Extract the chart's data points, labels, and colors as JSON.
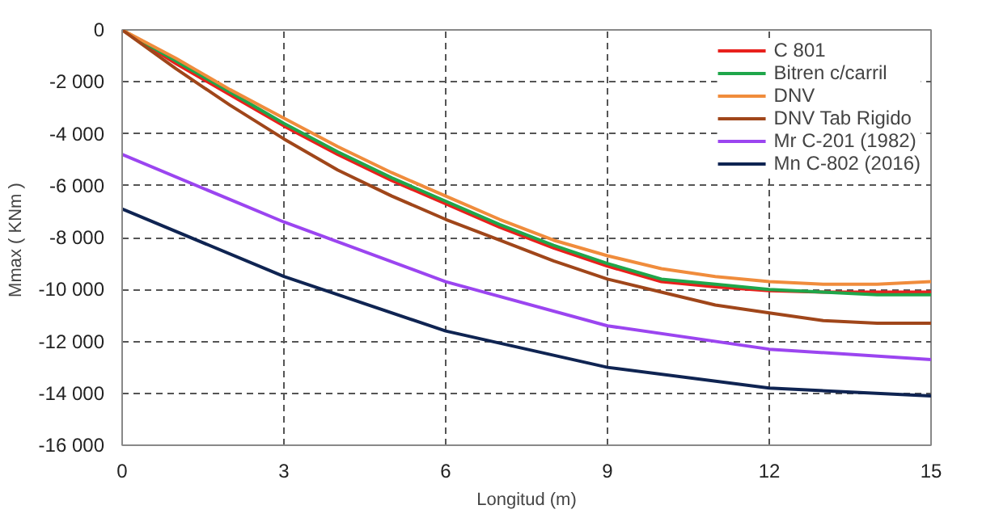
{
  "chart_data": {
    "type": "line",
    "xlabel": "Longitud (m)",
    "ylabel": "Mmax  ( KNm )",
    "x": [
      0,
      1,
      2,
      3,
      4,
      5,
      6,
      7,
      8,
      9,
      10,
      11,
      12,
      13,
      14,
      15
    ],
    "series": [
      {
        "name": "C 801",
        "color": "#e8201c",
        "values": [
          0,
          -1300,
          -2500,
          -3700,
          -4800,
          -5800,
          -6700,
          -7600,
          -8400,
          -9100,
          -9700,
          -9900,
          -10050,
          -10100,
          -10100,
          -10100
        ]
      },
      {
        "name": "Bitren c/carril",
        "color": "#1fa64a",
        "values": [
          0,
          -1200,
          -2400,
          -3600,
          -4700,
          -5700,
          -6600,
          -7500,
          -8300,
          -9000,
          -9600,
          -9800,
          -10000,
          -10100,
          -10200,
          -10200
        ]
      },
      {
        "name": "DNV",
        "color": "#f08c3c",
        "values": [
          0,
          -1100,
          -2300,
          -3400,
          -4500,
          -5500,
          -6400,
          -7300,
          -8100,
          -8700,
          -9200,
          -9500,
          -9700,
          -9800,
          -9800,
          -9700
        ]
      },
      {
        "name": "DNV Tab Rigido",
        "color": "#a0461a",
        "values": [
          0,
          -1500,
          -2900,
          -4200,
          -5400,
          -6400,
          -7300,
          -8100,
          -8900,
          -9600,
          -10100,
          -10600,
          -10900,
          -11200,
          -11300,
          -11300
        ]
      },
      {
        "name": "Mr C-201 (1982)",
        "color": "#9b45f0",
        "x": [
          0,
          3,
          6,
          9,
          12,
          15
        ],
        "values": [
          -4800,
          -7400,
          -9700,
          -11400,
          -12300,
          -12700
        ]
      },
      {
        "name": "Mn C-802 (2016)",
        "color": "#0f2452",
        "x": [
          0,
          3,
          6,
          9,
          12,
          15
        ],
        "values": [
          -6900,
          -9500,
          -11600,
          -13000,
          -13800,
          -14100
        ]
      }
    ],
    "xlim": [
      0,
      15
    ],
    "xticks": [
      0,
      3,
      6,
      9,
      12,
      15
    ],
    "ylim": [
      -16000,
      0
    ],
    "yticks": [
      {
        "value": 0,
        "label": "0"
      },
      {
        "value": -2000,
        "label": "-2 000"
      },
      {
        "value": -4000,
        "label": "-4 000"
      },
      {
        "value": -6000,
        "label": "-6 000"
      },
      {
        "value": -8000,
        "label": "-8 000"
      },
      {
        "value": -10000,
        "label": "-10 000"
      },
      {
        "value": -12000,
        "label": "-12 000"
      },
      {
        "value": -14000,
        "label": "-14 000"
      },
      {
        "value": -16000,
        "label": "-16 000"
      }
    ],
    "grid": true,
    "legend": "top right",
    "marker": "none",
    "line_style": "solid"
  }
}
